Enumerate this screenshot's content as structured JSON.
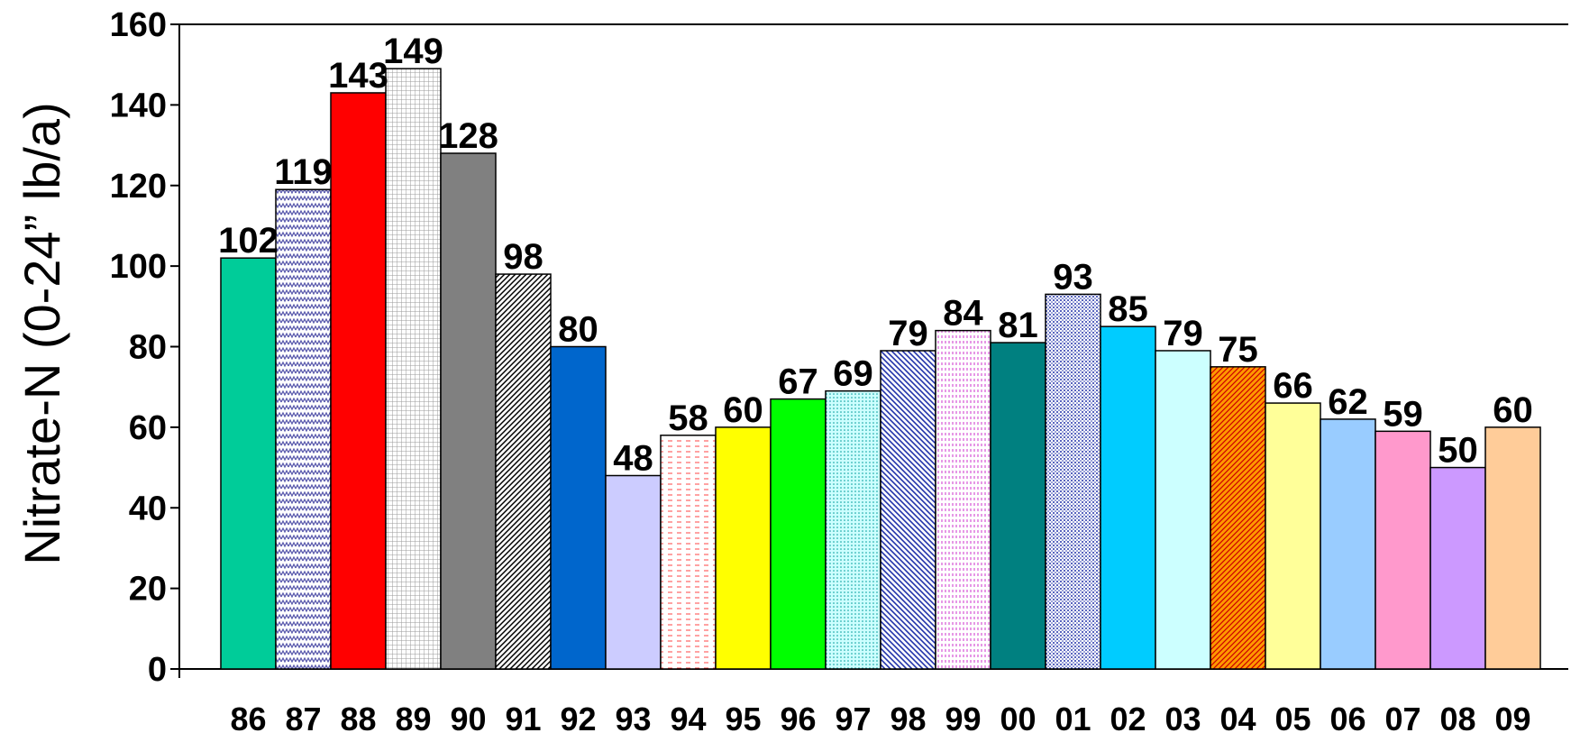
{
  "chart_data": {
    "type": "bar",
    "ylabel": "Nitrate-N (0-24” lb/a)",
    "xlabel": "",
    "ylim": [
      0,
      160
    ],
    "yticks": [
      0,
      20,
      40,
      60,
      80,
      100,
      120,
      140,
      160
    ],
    "grid": false,
    "legend": "none",
    "categories": [
      "86",
      "87",
      "88",
      "89",
      "90",
      "91",
      "92",
      "93",
      "94",
      "95",
      "96",
      "97",
      "98",
      "99",
      "00",
      "01",
      "02",
      "03",
      "04",
      "05",
      "06",
      "07",
      "08",
      "09"
    ],
    "values": [
      102,
      119,
      143,
      149,
      128,
      98,
      80,
      48,
      58,
      60,
      67,
      69,
      79,
      84,
      81,
      93,
      85,
      79,
      75,
      66,
      62,
      59,
      50,
      60
    ],
    "bar_colors": [
      "#00cc99",
      "#ffffff",
      "#ff0000",
      "#ffffff",
      "#808080",
      "#ffffff",
      "#0066cc",
      "#ccccff",
      "#ffffff",
      "#ffff00",
      "#00ff00",
      "#ccffff",
      "#ffffff",
      "#ffffff",
      "#008080",
      "#ffffff",
      "#00ccff",
      "#ccffff",
      "#ff9900",
      "#ffff99",
      "#99ccff",
      "#ff99cc",
      "#cc99ff",
      "#ffcc99"
    ],
    "bar_patterns": [
      "solid",
      "zigzag-blue",
      "solid",
      "grid-gray",
      "solid",
      "diag-black",
      "solid",
      "solid",
      "dash-red",
      "solid",
      "solid",
      "dots-teal",
      "diag-blue",
      "vlines-magenta",
      "solid",
      "dots-blue",
      "solid",
      "solid",
      "hatch-red",
      "solid",
      "solid",
      "solid",
      "solid",
      "solid"
    ]
  }
}
